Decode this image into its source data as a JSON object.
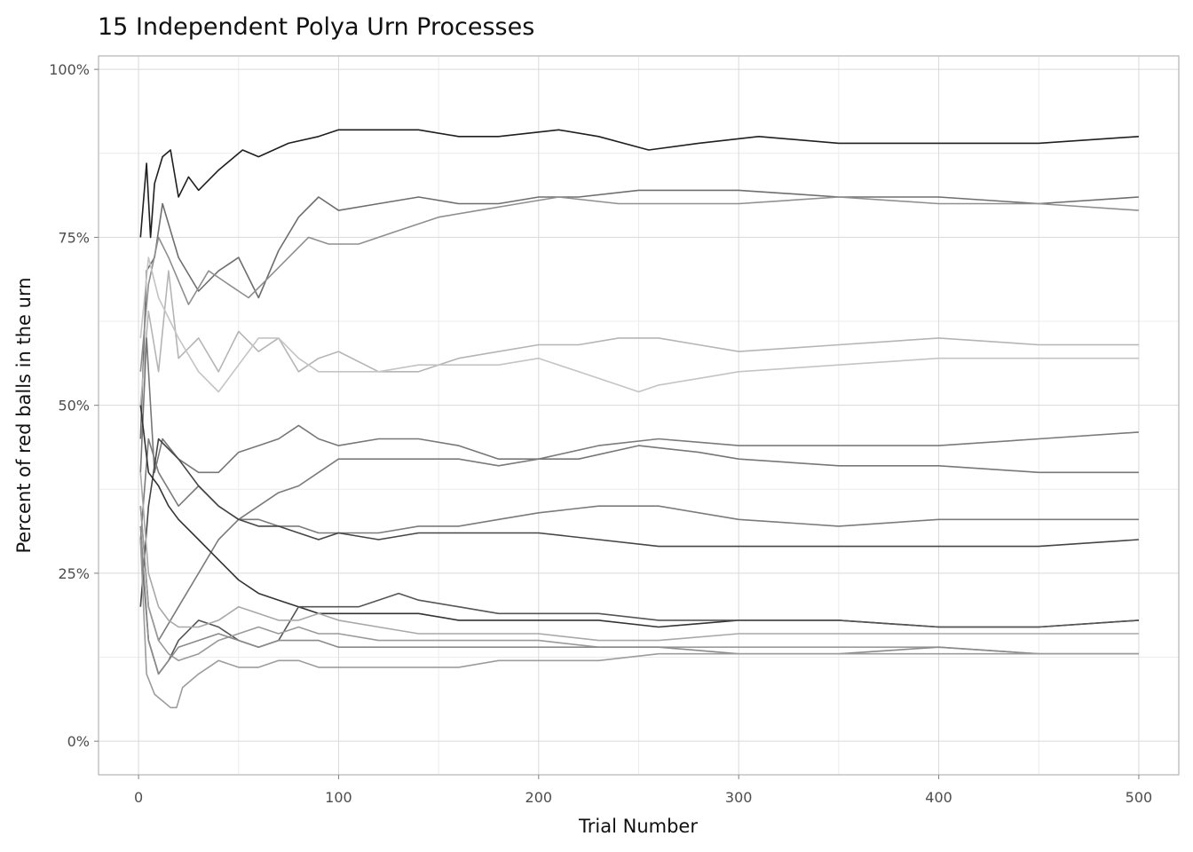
{
  "chart_data": {
    "type": "line",
    "title": "15 Independent Polya Urn Processes",
    "xlabel": "Trial Number",
    "ylabel": "Percent of red balls in the urn",
    "xlim": [
      -20,
      520
    ],
    "ylim": [
      -0.05,
      1.02
    ],
    "x_ticks": [
      0,
      100,
      200,
      300,
      400,
      500
    ],
    "x_tick_labels": [
      "0",
      "100",
      "200",
      "300",
      "400",
      "500"
    ],
    "y_ticks": [
      0,
      0.25,
      0.5,
      0.75,
      1.0
    ],
    "y_tick_labels": [
      "0%",
      "25%",
      "50%",
      "75%",
      "100%"
    ],
    "grid": true,
    "legend": "none",
    "series": [
      {
        "color": "#1f1f1f",
        "x": [
          1,
          4,
          6,
          8,
          12,
          16,
          20,
          25,
          30,
          40,
          52,
          60,
          75,
          90,
          100,
          120,
          140,
          160,
          180,
          210,
          230,
          255,
          280,
          310,
          350,
          400,
          450,
          500
        ],
        "y": [
          0.75,
          0.86,
          0.75,
          0.83,
          0.87,
          0.88,
          0.81,
          0.84,
          0.82,
          0.85,
          0.88,
          0.87,
          0.89,
          0.9,
          0.91,
          0.91,
          0.91,
          0.9,
          0.9,
          0.91,
          0.9,
          0.88,
          0.89,
          0.9,
          0.89,
          0.89,
          0.89,
          0.9
        ]
      },
      {
        "color": "#6e6e6e",
        "x": [
          1,
          4,
          8,
          12,
          20,
          30,
          40,
          50,
          60,
          70,
          80,
          90,
          100,
          120,
          140,
          160,
          180,
          200,
          220,
          250,
          280,
          300,
          350,
          400,
          450,
          500
        ],
        "y": [
          0.45,
          0.7,
          0.72,
          0.8,
          0.72,
          0.67,
          0.7,
          0.72,
          0.66,
          0.73,
          0.78,
          0.81,
          0.79,
          0.8,
          0.81,
          0.8,
          0.8,
          0.81,
          0.81,
          0.82,
          0.82,
          0.82,
          0.81,
          0.81,
          0.8,
          0.81
        ]
      },
      {
        "color": "#8f8f8f",
        "x": [
          1,
          5,
          10,
          15,
          25,
          35,
          45,
          55,
          65,
          75,
          85,
          95,
          110,
          130,
          150,
          170,
          190,
          210,
          240,
          270,
          300,
          350,
          400,
          450,
          500
        ],
        "y": [
          0.55,
          0.68,
          0.75,
          0.72,
          0.65,
          0.7,
          0.68,
          0.66,
          0.69,
          0.72,
          0.75,
          0.74,
          0.74,
          0.76,
          0.78,
          0.79,
          0.8,
          0.81,
          0.8,
          0.8,
          0.8,
          0.81,
          0.8,
          0.8,
          0.79
        ]
      },
      {
        "color": "#b5b5b5",
        "x": [
          1,
          5,
          10,
          15,
          20,
          30,
          40,
          50,
          60,
          70,
          80,
          90,
          100,
          120,
          140,
          160,
          180,
          200,
          220,
          240,
          260,
          280,
          300,
          350,
          400,
          450,
          500
        ],
        "y": [
          0.5,
          0.64,
          0.55,
          0.7,
          0.57,
          0.6,
          0.55,
          0.61,
          0.58,
          0.6,
          0.55,
          0.57,
          0.58,
          0.55,
          0.55,
          0.57,
          0.58,
          0.59,
          0.59,
          0.6,
          0.6,
          0.59,
          0.58,
          0.59,
          0.6,
          0.59,
          0.59
        ]
      },
      {
        "color": "#c4c4c4",
        "x": [
          1,
          5,
          10,
          20,
          30,
          40,
          50,
          60,
          70,
          80,
          90,
          100,
          120,
          140,
          160,
          180,
          200,
          220,
          240,
          250,
          260,
          280,
          300,
          350,
          400,
          450,
          500
        ],
        "y": [
          0.6,
          0.72,
          0.66,
          0.6,
          0.55,
          0.52,
          0.56,
          0.6,
          0.6,
          0.57,
          0.55,
          0.55,
          0.55,
          0.56,
          0.56,
          0.56,
          0.57,
          0.55,
          0.53,
          0.52,
          0.53,
          0.54,
          0.55,
          0.56,
          0.57,
          0.57,
          0.57
        ]
      },
      {
        "color": "#777777",
        "x": [
          1,
          4,
          8,
          12,
          20,
          30,
          40,
          50,
          60,
          70,
          80,
          90,
          100,
          120,
          140,
          160,
          180,
          200,
          220,
          250,
          280,
          300,
          350,
          400,
          450,
          500
        ],
        "y": [
          0.4,
          0.6,
          0.4,
          0.45,
          0.42,
          0.4,
          0.4,
          0.43,
          0.44,
          0.45,
          0.47,
          0.45,
          0.44,
          0.45,
          0.45,
          0.44,
          0.42,
          0.42,
          0.42,
          0.44,
          0.43,
          0.42,
          0.41,
          0.41,
          0.4,
          0.4
        ]
      },
      {
        "color": "#7a7a7a",
        "x": [
          1,
          5,
          10,
          20,
          30,
          40,
          50,
          60,
          70,
          80,
          90,
          100,
          120,
          140,
          160,
          180,
          200,
          230,
          260,
          300,
          350,
          400,
          450,
          500
        ],
        "y": [
          0.35,
          0.2,
          0.15,
          0.2,
          0.25,
          0.3,
          0.33,
          0.35,
          0.37,
          0.38,
          0.4,
          0.42,
          0.42,
          0.42,
          0.42,
          0.41,
          0.42,
          0.44,
          0.45,
          0.44,
          0.44,
          0.44,
          0.45,
          0.46
        ]
      },
      {
        "color": "#7b7b7b",
        "x": [
          1,
          5,
          10,
          20,
          30,
          40,
          50,
          60,
          70,
          80,
          90,
          100,
          120,
          140,
          160,
          180,
          200,
          230,
          260,
          300,
          350,
          400,
          450,
          500
        ],
        "y": [
          0.3,
          0.45,
          0.4,
          0.35,
          0.38,
          0.35,
          0.33,
          0.33,
          0.32,
          0.32,
          0.31,
          0.31,
          0.31,
          0.32,
          0.32,
          0.33,
          0.34,
          0.35,
          0.35,
          0.33,
          0.32,
          0.33,
          0.33,
          0.33
        ]
      },
      {
        "color": "#454545",
        "x": [
          1,
          5,
          10,
          20,
          30,
          40,
          50,
          60,
          70,
          80,
          90,
          100,
          120,
          140,
          160,
          180,
          200,
          230,
          260,
          300,
          350,
          400,
          450,
          500
        ],
        "y": [
          0.2,
          0.35,
          0.45,
          0.42,
          0.38,
          0.35,
          0.33,
          0.32,
          0.32,
          0.31,
          0.3,
          0.31,
          0.3,
          0.31,
          0.31,
          0.31,
          0.31,
          0.3,
          0.29,
          0.29,
          0.29,
          0.29,
          0.29,
          0.3
        ]
      },
      {
        "color": "#333333",
        "x": [
          1,
          5,
          10,
          15,
          20,
          30,
          40,
          50,
          60,
          70,
          80,
          90,
          100,
          120,
          140,
          160,
          180,
          200,
          230,
          260,
          300,
          350,
          400,
          450,
          500
        ],
        "y": [
          0.5,
          0.4,
          0.38,
          0.35,
          0.33,
          0.3,
          0.27,
          0.24,
          0.22,
          0.21,
          0.2,
          0.19,
          0.19,
          0.19,
          0.19,
          0.18,
          0.18,
          0.18,
          0.18,
          0.17,
          0.18,
          0.18,
          0.17,
          0.17,
          0.18
        ]
      },
      {
        "color": "#555555",
        "x": [
          1,
          5,
          10,
          15,
          20,
          30,
          40,
          50,
          60,
          70,
          80,
          90,
          100,
          110,
          120,
          130,
          140,
          160,
          180,
          200,
          230,
          260,
          300,
          350,
          400,
          450,
          500
        ],
        "y": [
          0.3,
          0.15,
          0.1,
          0.12,
          0.15,
          0.18,
          0.17,
          0.15,
          0.14,
          0.15,
          0.2,
          0.2,
          0.2,
          0.2,
          0.21,
          0.22,
          0.21,
          0.2,
          0.19,
          0.19,
          0.19,
          0.18,
          0.18,
          0.18,
          0.17,
          0.17,
          0.18
        ]
      },
      {
        "color": "#a8a8a8",
        "x": [
          1,
          5,
          10,
          15,
          20,
          30,
          40,
          50,
          60,
          70,
          80,
          90,
          100,
          120,
          140,
          160,
          180,
          200,
          230,
          260,
          300,
          350,
          400,
          450,
          500
        ],
        "y": [
          0.4,
          0.25,
          0.2,
          0.18,
          0.17,
          0.17,
          0.18,
          0.2,
          0.19,
          0.18,
          0.18,
          0.19,
          0.18,
          0.17,
          0.16,
          0.16,
          0.16,
          0.16,
          0.15,
          0.15,
          0.16,
          0.16,
          0.16,
          0.16,
          0.16
        ]
      },
      {
        "color": "#9a9a9a",
        "x": [
          1,
          5,
          10,
          15,
          20,
          30,
          40,
          50,
          60,
          70,
          80,
          90,
          100,
          120,
          140,
          160,
          180,
          200,
          230,
          260,
          300,
          350,
          400,
          450,
          500
        ],
        "y": [
          0.35,
          0.2,
          0.15,
          0.13,
          0.12,
          0.13,
          0.15,
          0.16,
          0.17,
          0.16,
          0.17,
          0.16,
          0.16,
          0.15,
          0.15,
          0.15,
          0.15,
          0.15,
          0.14,
          0.14,
          0.14,
          0.14,
          0.14,
          0.13,
          0.13
        ]
      },
      {
        "color": "#8a8a8a",
        "x": [
          1,
          5,
          10,
          15,
          20,
          30,
          40,
          50,
          60,
          70,
          80,
          90,
          100,
          120,
          140,
          160,
          180,
          200,
          230,
          260,
          300,
          350,
          400,
          450,
          500
        ],
        "y": [
          0.32,
          0.15,
          0.1,
          0.12,
          0.14,
          0.15,
          0.16,
          0.15,
          0.14,
          0.15,
          0.15,
          0.15,
          0.14,
          0.14,
          0.14,
          0.14,
          0.14,
          0.14,
          0.14,
          0.14,
          0.13,
          0.13,
          0.14,
          0.13,
          0.13
        ]
      },
      {
        "color": "#9c9c9c",
        "x": [
          1,
          4,
          8,
          12,
          16,
          19,
          22,
          30,
          40,
          50,
          60,
          70,
          80,
          90,
          100,
          120,
          140,
          160,
          180,
          200,
          230,
          260,
          300,
          350,
          400,
          450,
          500
        ],
        "y": [
          0.3,
          0.1,
          0.07,
          0.06,
          0.05,
          0.05,
          0.08,
          0.1,
          0.12,
          0.11,
          0.11,
          0.12,
          0.12,
          0.11,
          0.11,
          0.11,
          0.11,
          0.11,
          0.12,
          0.12,
          0.12,
          0.13,
          0.13,
          0.13,
          0.13,
          0.13,
          0.13
        ]
      }
    ]
  }
}
